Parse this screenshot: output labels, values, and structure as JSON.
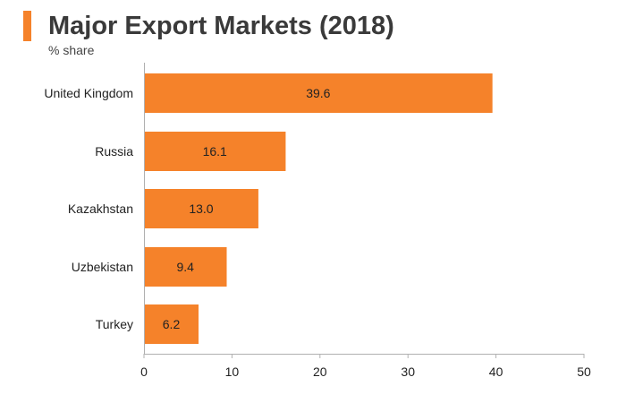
{
  "header": {
    "title": "Major Export Markets (2018)",
    "subtitle": "% share"
  },
  "colors": {
    "bar": "#f5822a",
    "accent": "#f5822a",
    "axis": "#b0b0b0",
    "text": "#222222"
  },
  "chart_data": {
    "type": "bar",
    "orientation": "horizontal",
    "title": "Major Export Markets (2018)",
    "subtitle": "% share",
    "categories": [
      "United Kingdom",
      "Russia",
      "Kazakhstan",
      "Uzbekistan",
      "Turkey"
    ],
    "values": [
      39.6,
      16.1,
      13.0,
      9.4,
      6.2
    ],
    "value_labels": [
      "39.6",
      "16.1",
      "13.0",
      "9.4",
      "6.2"
    ],
    "xlim": [
      0,
      50
    ],
    "xticks": [
      0,
      10,
      20,
      30,
      40,
      50
    ],
    "xlabel": "",
    "ylabel": "",
    "grid": false,
    "legend": "none"
  }
}
